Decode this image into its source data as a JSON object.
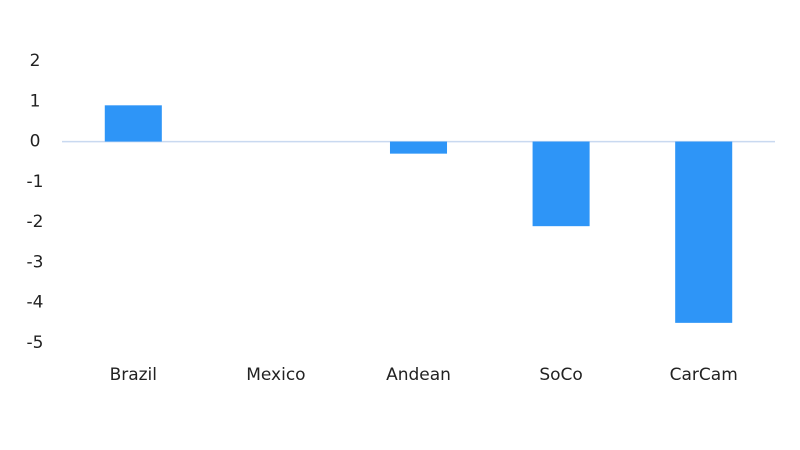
{
  "chart_data": {
    "type": "bar",
    "categories": [
      "Brazil",
      "Mexico",
      "Andean",
      "SoCo",
      "CarCam"
    ],
    "values": [
      0.9,
      0,
      -0.3,
      -2.1,
      -4.5
    ],
    "color": "#2e95f7",
    "ylim": [
      -5,
      2
    ],
    "yticks": [
      -5,
      -4,
      -3,
      -2,
      -1,
      0,
      1,
      2
    ],
    "grid": false
  }
}
